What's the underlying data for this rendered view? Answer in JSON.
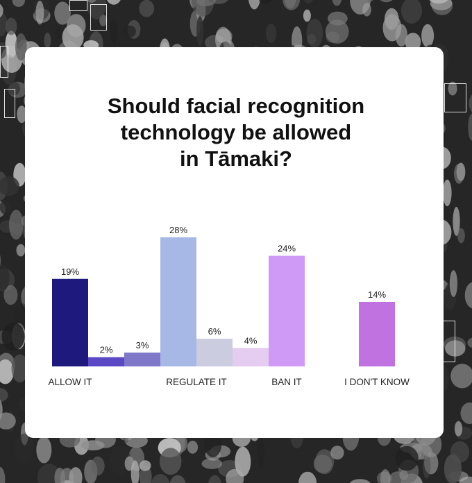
{
  "colors": {
    "card": "#ffffff",
    "title": "#111111",
    "labels": "#222222"
  },
  "chart_data": {
    "type": "bar",
    "title": "Should facial recognition technology be allowed in Tāmaki?",
    "title_lines": [
      "Should facial recognition",
      "technology be allowed",
      "in Tāmaki?"
    ],
    "bars": [
      {
        "value": 19,
        "label": "19%",
        "color": "#1e1a7d"
      },
      {
        "value": 2,
        "label": "2%",
        "color": "#5a48c4"
      },
      {
        "value": 3,
        "label": "3%",
        "color": "#7f78c9"
      },
      {
        "value": 28,
        "label": "28%",
        "color": "#a8b8e6"
      },
      {
        "value": 6,
        "label": "6%",
        "color": "#cbcce0"
      },
      {
        "value": 4,
        "label": "4%",
        "color": "#e4cdf0"
      },
      {
        "value": 24,
        "label": "24%",
        "color": "#cf9af5"
      },
      {
        "value": 14,
        "label": "14%",
        "color": "#bf72e0"
      }
    ],
    "categories": [
      "ALLOW IT",
      "REGULATE IT",
      "BAN IT",
      "I DON'T KNOW"
    ],
    "ylim": [
      0,
      28
    ],
    "grid": false,
    "legend": "none"
  }
}
